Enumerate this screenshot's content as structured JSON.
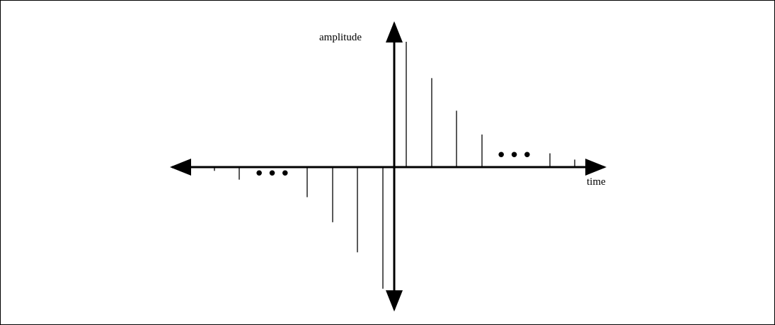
{
  "labels": {
    "y_axis": "amplitude",
    "x_axis": "time"
  },
  "colors": {
    "stroke": "#000000",
    "background": "#ffffff"
  },
  "stems": {
    "left": [
      -0.03,
      -0.1,
      -0.24,
      -0.44,
      -0.68,
      -0.97
    ],
    "right": [
      1.0,
      0.71,
      0.45,
      0.26,
      0.11,
      0.06
    ]
  },
  "continuation_markers": {
    "left": "•••",
    "right": "•••"
  }
}
